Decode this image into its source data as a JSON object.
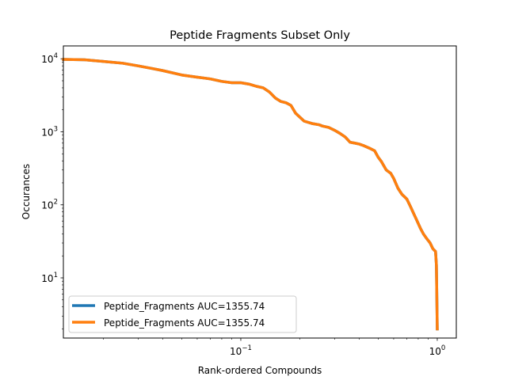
{
  "chart_data": {
    "type": "line",
    "title": "Peptide Fragments Subset Only",
    "xlabel": "Rank-ordered Compounds",
    "ylabel": "Occurances",
    "xscale": "log",
    "yscale": "log",
    "xlim": [
      0.0125,
      1.25
    ],
    "ylim": [
      1.5,
      15000
    ],
    "grid": false,
    "legend_position": "lower-left",
    "x_ticks": [
      {
        "value": 0.1,
        "label": "10",
        "sup": "−1"
      },
      {
        "value": 1,
        "label": "10",
        "sup": "0"
      }
    ],
    "y_ticks": [
      {
        "value": 10,
        "label": "10",
        "sup": "1"
      },
      {
        "value": 100,
        "label": "10",
        "sup": "2"
      },
      {
        "value": 1000,
        "label": "10",
        "sup": "3"
      },
      {
        "value": 10000,
        "label": "10",
        "sup": "4"
      }
    ],
    "series": [
      {
        "name": "Peptide_Fragments AUC=1355.74",
        "color": "#1f77b4",
        "x": [
          0.0125,
          0.016,
          0.02,
          0.025,
          0.03,
          0.035,
          0.04,
          0.05,
          0.06,
          0.07,
          0.08,
          0.09,
          0.1,
          0.11,
          0.12,
          0.13,
          0.14,
          0.15,
          0.16,
          0.17,
          0.18,
          0.19,
          0.21,
          0.23,
          0.25,
          0.26,
          0.28,
          0.3,
          0.32,
          0.34,
          0.36,
          0.38,
          0.4,
          0.42,
          0.45,
          0.48,
          0.5,
          0.52,
          0.55,
          0.58,
          0.6,
          0.63,
          0.66,
          0.7,
          0.73,
          0.76,
          0.79,
          0.82,
          0.85,
          0.88,
          0.92,
          0.95,
          0.98,
          0.99,
          1.0
        ],
        "y": [
          9800,
          9700,
          9200,
          8700,
          8000,
          7400,
          6900,
          6000,
          5600,
          5300,
          4900,
          4700,
          4700,
          4500,
          4200,
          4000,
          3500,
          2900,
          2600,
          2500,
          2300,
          1800,
          1400,
          1300,
          1250,
          1200,
          1150,
          1050,
          950,
          850,
          720,
          700,
          680,
          650,
          600,
          550,
          450,
          390,
          300,
          270,
          230,
          170,
          140,
          120,
          95,
          75,
          60,
          48,
          40,
          35,
          30,
          25,
          23,
          15,
          2
        ]
      },
      {
        "name": "Peptide_Fragments AUC=1355.74",
        "color": "#ff7f0e",
        "x": [
          0.0125,
          0.016,
          0.02,
          0.025,
          0.03,
          0.035,
          0.04,
          0.05,
          0.06,
          0.07,
          0.08,
          0.09,
          0.1,
          0.11,
          0.12,
          0.13,
          0.14,
          0.15,
          0.16,
          0.17,
          0.18,
          0.19,
          0.21,
          0.23,
          0.25,
          0.26,
          0.28,
          0.3,
          0.32,
          0.34,
          0.36,
          0.38,
          0.4,
          0.42,
          0.45,
          0.48,
          0.5,
          0.52,
          0.55,
          0.58,
          0.6,
          0.63,
          0.66,
          0.7,
          0.73,
          0.76,
          0.79,
          0.82,
          0.85,
          0.88,
          0.92,
          0.95,
          0.98,
          0.99,
          1.0
        ],
        "y": [
          9800,
          9700,
          9200,
          8700,
          8000,
          7400,
          6900,
          6000,
          5600,
          5300,
          4900,
          4700,
          4700,
          4500,
          4200,
          4000,
          3500,
          2900,
          2600,
          2500,
          2300,
          1800,
          1400,
          1300,
          1250,
          1200,
          1150,
          1050,
          950,
          850,
          720,
          700,
          680,
          650,
          600,
          550,
          450,
          390,
          300,
          270,
          230,
          170,
          140,
          120,
          95,
          75,
          60,
          48,
          40,
          35,
          30,
          25,
          23,
          15,
          2
        ]
      }
    ]
  }
}
